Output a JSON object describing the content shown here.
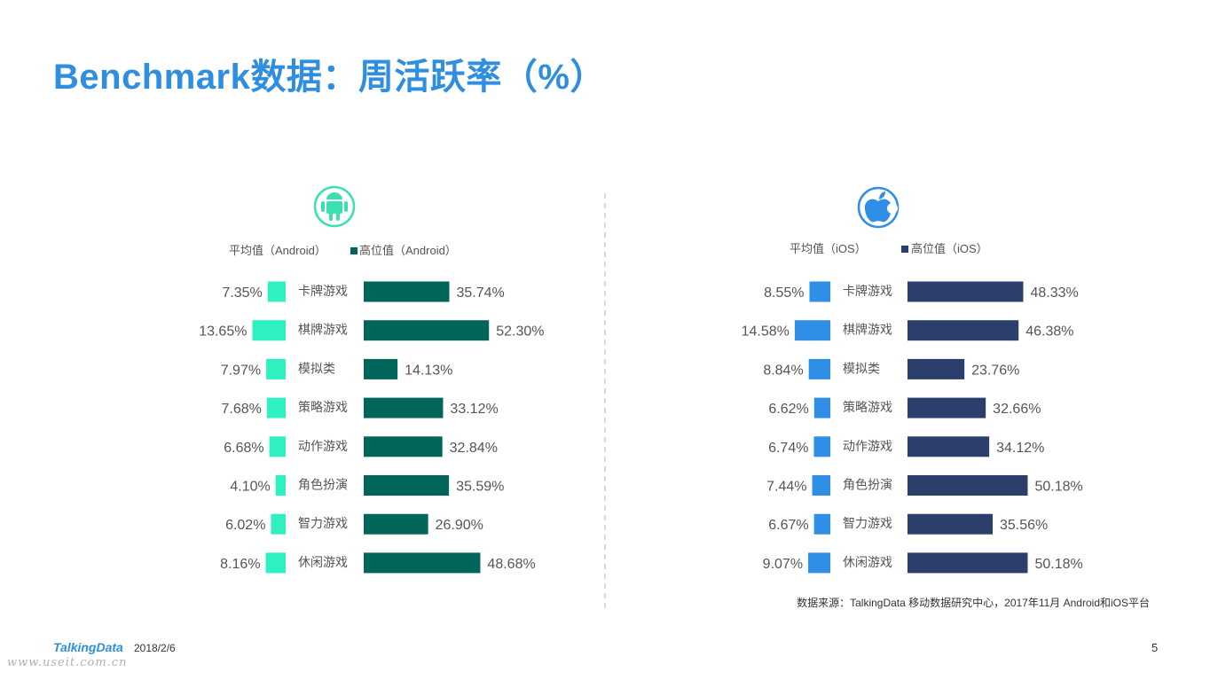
{
  "header": {
    "title": "Benchmark数据：周活跃率（%）"
  },
  "colors": {
    "title": "#2f8ee0",
    "android_avg": "#2ff0c0",
    "android_high": "#02655a",
    "ios_avg": "#2f8ee6",
    "ios_high": "#2c3e6b",
    "android_icon": "#3ce0b0",
    "ios_icon": "#2f8ee6"
  },
  "chart_data": [
    {
      "type": "bar",
      "platform": "Android",
      "platform_icon": "android-icon",
      "categories": [
        "卡牌游戏",
        "棋牌游戏",
        "模拟类",
        "策略游戏",
        "动作游戏",
        "角色扮演",
        "智力游戏",
        "休闲游戏"
      ],
      "series": [
        {
          "name": "平均值（Android）",
          "values": [
            7.35,
            13.65,
            7.97,
            7.68,
            6.68,
            4.1,
            6.02,
            8.16
          ],
          "labels": [
            "7.35%",
            "13.65%",
            "7.97%",
            "7.68%",
            "6.68%",
            "4.10%",
            "6.02%",
            "8.16%"
          ]
        },
        {
          "name": "高位值（Android）",
          "values": [
            35.74,
            52.3,
            14.13,
            33.12,
            32.84,
            35.59,
            26.9,
            48.68
          ],
          "labels": [
            "35.74%",
            "52.30%",
            "14.13%",
            "33.12%",
            "32.84%",
            "35.59%",
            "26.90%",
            "48.68%"
          ]
        }
      ],
      "legend": [
        "平均值（Android）",
        "高位值（Android）"
      ]
    },
    {
      "type": "bar",
      "platform": "iOS",
      "platform_icon": "apple-icon",
      "categories": [
        "卡牌游戏",
        "棋牌游戏",
        "模拟类",
        "策略游戏",
        "动作游戏",
        "角色扮演",
        "智力游戏",
        "休闲游戏"
      ],
      "series": [
        {
          "name": "平均值（iOS）",
          "values": [
            8.55,
            14.58,
            8.84,
            6.62,
            6.74,
            7.44,
            6.67,
            9.07
          ],
          "labels": [
            "8.55%",
            "14.58%",
            "8.84%",
            "6.62%",
            "6.74%",
            "7.44%",
            "6.67%",
            "9.07%"
          ]
        },
        {
          "name": "高位值（iOS）",
          "values": [
            48.33,
            46.38,
            23.76,
            32.66,
            34.12,
            50.18,
            35.56,
            50.18
          ],
          "labels": [
            "48.33%",
            "46.38%",
            "23.76%",
            "32.66%",
            "34.12%",
            "50.18%",
            "35.56%",
            "50.18%"
          ]
        }
      ],
      "legend": [
        "平均值（iOS）",
        "高位值（iOS）"
      ]
    }
  ],
  "source_note": "数据来源：TalkingData 移动数据研究中心，2017年11月 Android和iOS平台",
  "footer": {
    "brand": "TalkingData",
    "date": "2018/2/6",
    "page_number": "5",
    "watermark": "www.useit.com.cn"
  }
}
